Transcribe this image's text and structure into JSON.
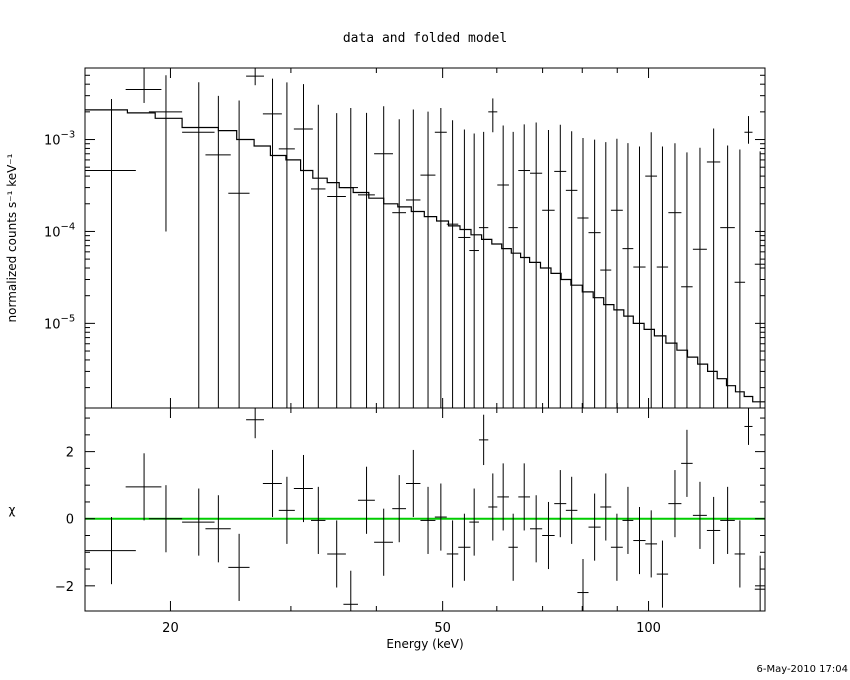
{
  "chart_data": [
    {
      "type": "scatter",
      "title": "data and folded model",
      "xlabel": "",
      "ylabel": "normalized counts s⁻¹ keV⁻¹",
      "xscale": "log",
      "yscale": "log",
      "xlim": [
        15,
        148
      ],
      "ylim": [
        1.2e-06,
        0.006
      ],
      "yticks": [
        {
          "value": 0.001,
          "mant": "10",
          "exp": "−3"
        },
        {
          "value": 0.0001,
          "mant": "10",
          "exp": "−4"
        },
        {
          "value": 1e-05,
          "mant": "10",
          "exp": "−5"
        }
      ],
      "grid": false,
      "series": [
        {
          "kind": "data",
          "x": [
            16.4,
            18.3,
            19.7,
            22.0,
            23.5,
            25.2,
            26.6,
            28.2,
            29.6,
            31.3,
            32.9,
            35.0,
            36.7,
            38.7,
            41.0,
            43.2,
            45.3,
            47.6,
            49.7,
            51.7,
            53.8,
            55.6,
            57.4,
            59.2,
            61.3,
            63.4,
            65.8,
            68.5,
            71.4,
            74.3,
            77.2,
            80.2,
            83.4,
            86.6,
            89.9,
            93.3,
            97.0,
            100.9,
            104.8,
            109.3,
            113.8,
            118.9,
            124.5,
            130.5,
            136.0,
            140.0,
            145.6
          ],
          "xerr": [
            1.4,
            1.1,
            1.1,
            1.2,
            1.0,
            0.9,
            0.8,
            0.9,
            0.8,
            1.0,
            0.8,
            1.1,
            0.9,
            1.1,
            1.3,
            1.0,
            1.1,
            1.2,
            1.0,
            1.0,
            1.1,
            0.9,
            0.9,
            0.9,
            1.2,
            1.0,
            1.3,
            1.4,
            1.5,
            1.5,
            1.5,
            1.5,
            1.7,
            1.6,
            1.8,
            1.7,
            2.0,
            2.0,
            2.0,
            2.4,
            2.2,
            2.8,
            2.8,
            3.2,
            2.4,
            1.9,
            2.6
          ],
          "y": [
            0.00046,
            0.0035,
            0.002,
            0.0012,
            0.00068,
            0.00026,
            0.0049,
            0.0019,
            0.00079,
            0.0013,
            0.00029,
            0.00024,
            0.0003,
            0.00025,
            0.0007,
            0.00016,
            0.00022,
            0.00041,
            0.0012,
            0.00012,
            8.6e-05,
            6.2e-05,
            0.00011,
            0.002,
            0.00032,
            0.00011,
            0.00046,
            0.00043,
            0.00017,
            0.00045,
            0.00028,
            0.00014,
            9.7e-05,
            3.8e-05,
            0.00017,
            6.5e-05,
            4.1e-05,
            0.0004,
            4.1e-05,
            0.00016,
            2.5e-05,
            6.4e-05,
            0.00057,
            0.00011,
            2.8e-05,
            0.0012,
            4.4e-05
          ],
          "yerr_lo": [
            0.00046,
            0.001,
            0.0019,
            0.0012,
            0.00068,
            0.00026,
            0.001,
            0.0019,
            0.00079,
            0.0013,
            0.00029,
            0.00024,
            0.0003,
            0.00025,
            0.0007,
            0.00016,
            0.00022,
            0.00041,
            0.0012,
            0.00012,
            8.6e-05,
            6.2e-05,
            0.00011,
            0.0008,
            0.00032,
            0.00011,
            0.00046,
            0.00043,
            0.00017,
            0.00045,
            0.00028,
            0.00014,
            9.7e-05,
            3.8e-05,
            0.00017,
            6.5e-05,
            4.1e-05,
            0.0004,
            4.1e-05,
            0.00016,
            2.5e-05,
            6.4e-05,
            0.00057,
            0.00011,
            2.8e-05,
            0.0003,
            4.4e-05
          ],
          "yerr_hi": [
            0.0023,
            0.0025,
            0.003,
            0.003,
            0.0023,
            0.0024,
            0.002,
            0.0027,
            0.0034,
            0.0027,
            0.0021,
            0.0017,
            0.0019,
            0.0017,
            0.0016,
            0.0015,
            0.0019,
            0.0016,
            0.001,
            0.0015,
            0.0012,
            0.0011,
            0.0011,
            0.0008,
            0.0011,
            0.0011,
            0.001,
            0.0011,
            0.0011,
            0.001,
            0.00095,
            0.0009,
            0.0009,
            0.0009,
            0.00085,
            0.00085,
            0.0008,
            0.0008,
            0.0008,
            0.00075,
            0.0007,
            0.00075,
            0.00075,
            0.00075,
            0.00075,
            0.0006,
            0.0007
          ]
        },
        {
          "kind": "model",
          "edges": [
            15.0,
            17.3,
            19.0,
            20.8,
            23.5,
            25.0,
            26.5,
            28.0,
            29.5,
            31.0,
            32.3,
            33.9,
            35.3,
            37.0,
            39.0,
            41.0,
            43.0,
            45.0,
            47.0,
            49.0,
            51.0,
            53.0,
            55.0,
            57.0,
            59.0,
            61.0,
            63.0,
            65.0,
            67.0,
            69.5,
            72.0,
            74.5,
            77.0,
            80.0,
            83.0,
            86.0,
            89.0,
            92.0,
            95.0,
            98.5,
            102.0,
            106.0,
            110.0,
            114.0,
            118.0,
            122.0,
            126.0,
            130.0,
            134.0,
            138.0,
            142.0,
            148.0
          ],
          "values": [
            0.0021,
            0.00195,
            0.0017,
            0.00135,
            0.00125,
            0.001,
            0.00085,
            0.00067,
            0.0006,
            0.00046,
            0.00038,
            0.00034,
            0.0003,
            0.000265,
            0.00023,
            0.0002,
            0.000185,
            0.000165,
            0.000145,
            0.00013,
            0.000115,
            0.000105,
            9.2e-05,
            8.2e-05,
            7.3e-05,
            6.5e-05,
            5.8e-05,
            5.2e-05,
            4.6e-05,
            4e-05,
            3.5e-05,
            3e-05,
            2.6e-05,
            2.2e-05,
            1.9e-05,
            1.6e-05,
            1.4e-05,
            1.2e-05,
            1e-05,
            8.6e-06,
            7.3e-06,
            6.1e-06,
            5.1e-06,
            4.3e-06,
            3.6e-06,
            3e-06,
            2.5e-06,
            2.1e-06,
            1.8e-06,
            1.6e-06,
            1.4e-06
          ]
        }
      ]
    },
    {
      "type": "scatter",
      "xlabel": "Energy (keV)",
      "ylabel": "χ",
      "xscale": "log",
      "xlim": [
        15,
        148
      ],
      "ylim": [
        -2.75,
        3.3
      ],
      "yticks": [
        2,
        0,
        -2
      ],
      "xticks": [
        20,
        50,
        100
      ],
      "reference_line": {
        "y": 0,
        "color": "#00cc00"
      },
      "series": [
        {
          "kind": "residuals",
          "x": [
            16.4,
            18.3,
            19.7,
            22.0,
            23.5,
            25.2,
            26.6,
            28.2,
            29.6,
            31.3,
            32.9,
            35.0,
            36.7,
            38.7,
            41.0,
            43.2,
            45.3,
            47.6,
            49.7,
            51.7,
            53.8,
            55.6,
            57.4,
            59.2,
            61.3,
            63.4,
            65.8,
            68.5,
            71.4,
            74.3,
            77.2,
            80.2,
            83.4,
            86.6,
            89.9,
            93.3,
            97.0,
            100.9,
            104.8,
            109.3,
            113.8,
            118.9,
            124.5,
            130.5,
            136.0,
            140.0,
            145.6
          ],
          "xerr": [
            1.4,
            1.1,
            1.1,
            1.2,
            1.0,
            0.9,
            0.8,
            0.9,
            0.8,
            1.0,
            0.8,
            1.1,
            0.9,
            1.1,
            1.3,
            1.0,
            1.1,
            1.2,
            1.0,
            1.0,
            1.1,
            0.9,
            0.9,
            0.9,
            1.2,
            1.0,
            1.3,
            1.4,
            1.5,
            1.5,
            1.5,
            1.5,
            1.7,
            1.6,
            1.8,
            1.7,
            2.0,
            2.0,
            2.0,
            2.4,
            2.2,
            2.8,
            2.8,
            3.2,
            2.4,
            1.9,
            2.6
          ],
          "y": [
            -0.95,
            0.95,
            0.0,
            -0.1,
            -0.3,
            -1.45,
            2.95,
            1.05,
            0.25,
            0.9,
            -0.05,
            -1.05,
            -2.55,
            0.55,
            -0.7,
            0.3,
            1.05,
            -0.05,
            0.05,
            -1.05,
            -0.85,
            -0.1,
            2.35,
            0.35,
            0.65,
            -0.85,
            0.65,
            -0.3,
            -0.5,
            0.45,
            0.25,
            -2.2,
            -0.25,
            0.35,
            -0.85,
            -0.05,
            -0.65,
            -0.75,
            -1.65,
            0.45,
            1.65,
            0.1,
            -0.35,
            -0.05,
            -1.05,
            2.75,
            -2.1
          ],
          "yerr": [
            1.0,
            1.0,
            1.0,
            1.0,
            1.0,
            1.0,
            0.55,
            1.0,
            1.0,
            1.0,
            1.0,
            1.0,
            1.0,
            1.0,
            1.0,
            1.0,
            1.0,
            1.0,
            1.0,
            1.0,
            1.0,
            1.0,
            0.75,
            1.0,
            1.0,
            1.0,
            1.0,
            1.0,
            1.0,
            1.0,
            1.0,
            1.0,
            1.0,
            1.0,
            1.0,
            1.0,
            1.0,
            1.0,
            1.0,
            1.0,
            1.0,
            1.0,
            1.0,
            1.0,
            1.0,
            0.55,
            1.0
          ]
        }
      ]
    }
  ],
  "timestamp": "6-May-2010 17:04"
}
